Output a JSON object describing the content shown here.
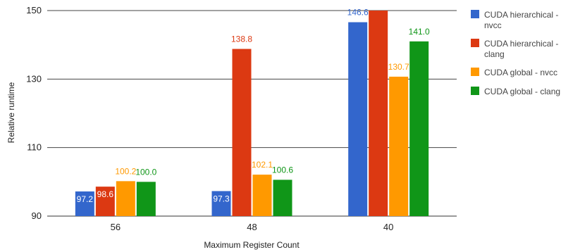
{
  "chart_data": {
    "type": "bar",
    "title": "",
    "xlabel": "Maximum Register Count",
    "ylabel": "Relative runtime",
    "categories": [
      "56",
      "48",
      "40"
    ],
    "ylim": [
      90,
      150
    ],
    "yticks": [
      90,
      110,
      130,
      150
    ],
    "grid": true,
    "legend_position": "right",
    "series": [
      {
        "name": "CUDA hierarchical - nvcc",
        "legend_lines": [
          "CUDA hierarchical -",
          "nvcc"
        ],
        "color": "#3366cc",
        "values": [
          97.2,
          97.3,
          146.6
        ],
        "labels": [
          "97.2",
          "97.3",
          "146.6"
        ]
      },
      {
        "name": "CUDA hierarchical - clang",
        "legend_lines": [
          "CUDA hierarchical -",
          "clang"
        ],
        "color": "#dc3912",
        "values": [
          98.6,
          138.8,
          150
        ],
        "labels": [
          "98.6",
          "138.8",
          ""
        ]
      },
      {
        "name": "CUDA global - nvcc",
        "legend_lines": [
          "CUDA global - nvcc"
        ],
        "color": "#ff9900",
        "values": [
          100.2,
          102.1,
          130.7
        ],
        "labels": [
          "100.2",
          "102.1",
          "130.7"
        ]
      },
      {
        "name": "CUDA global - clang",
        "legend_lines": [
          "CUDA global - clang"
        ],
        "color": "#109618",
        "values": [
          100.0,
          100.6,
          141.0
        ],
        "labels": [
          "100.0",
          "100.6",
          "141.0"
        ]
      }
    ]
  }
}
